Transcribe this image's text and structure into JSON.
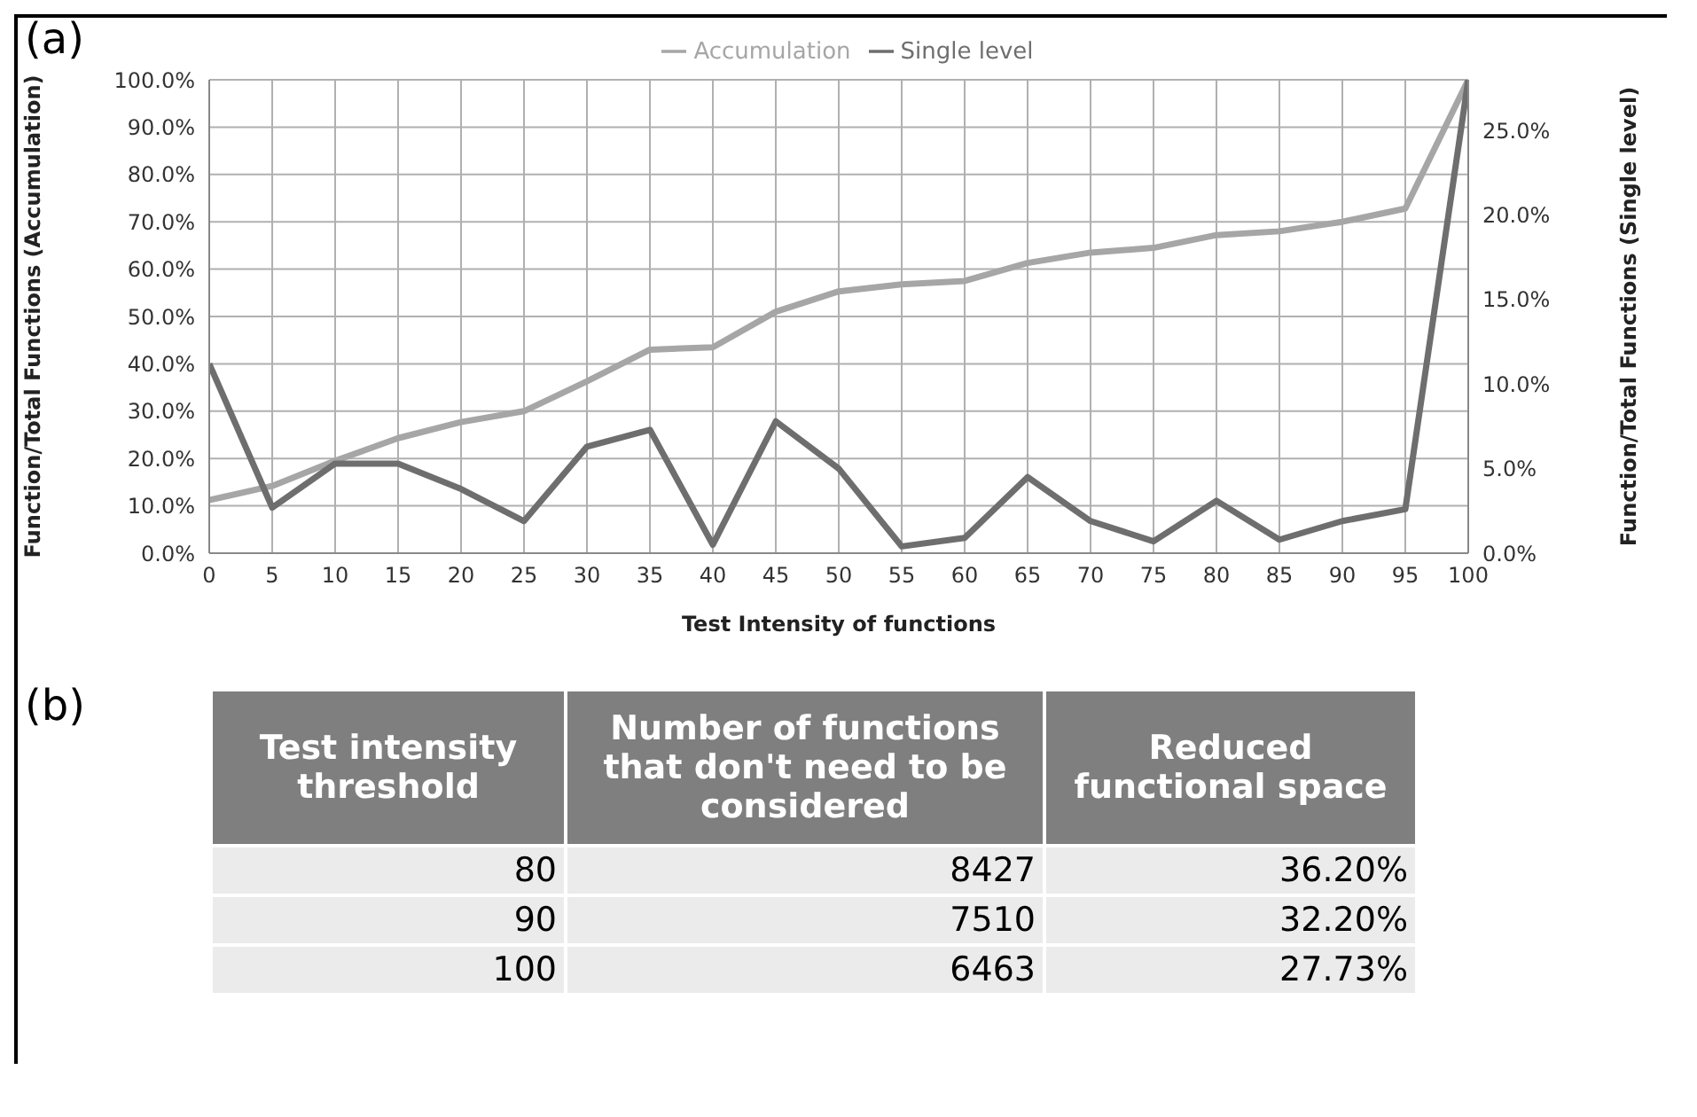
{
  "chart_data": [
    {
      "type": "line",
      "title": "(a)",
      "xlabel": "Test Intensity of functions",
      "ylabel": "Function/Total Functions (Accumulation)",
      "y2label": "Function/Total Functions (Single level)",
      "x": [
        0,
        5,
        10,
        15,
        20,
        25,
        30,
        35,
        40,
        45,
        50,
        55,
        60,
        65,
        70,
        75,
        80,
        85,
        90,
        95,
        100
      ],
      "series": [
        {
          "name": "Accumulation",
          "color": "#a6a6a6",
          "values": [
            11.2,
            14.2,
            19.5,
            24.3,
            27.7,
            30,
            36.3,
            43,
            43.5,
            51,
            55.3,
            56.8,
            57.5,
            61.3,
            63.5,
            64.5,
            67.2,
            68,
            70,
            72.8,
            100
          ]
        },
        {
          "name": "Single level",
          "color": "#6e6e6e",
          "axis": "y2",
          "values": [
            11.2,
            2.7,
            5.3,
            5.3,
            3.8,
            1.9,
            6.3,
            7.3,
            0.5,
            7.8,
            5.0,
            0.4,
            0.9,
            4.5,
            1.9,
            0.7,
            3.1,
            0.8,
            1.9,
            2.6,
            28
          ]
        }
      ],
      "xlim": [
        0,
        100
      ],
      "xticks": [
        0,
        5,
        10,
        15,
        20,
        25,
        30,
        35,
        40,
        45,
        50,
        55,
        60,
        65,
        70,
        75,
        80,
        85,
        90,
        95,
        100
      ],
      "ylim": [
        0,
        100
      ],
      "yticks": [
        {
          "value": 0,
          "label": "0.0%"
        },
        {
          "value": 10,
          "label": "10.0%"
        },
        {
          "value": 20,
          "label": "20.0%"
        },
        {
          "value": 30,
          "label": "30.0%"
        },
        {
          "value": 40,
          "label": "40.0%"
        },
        {
          "value": 50,
          "label": "50.0%"
        },
        {
          "value": 60,
          "label": "60.0%"
        },
        {
          "value": 70,
          "label": "70.0%"
        },
        {
          "value": 80,
          "label": "80.0%"
        },
        {
          "value": 90,
          "label": "90.0%"
        },
        {
          "value": 100,
          "label": "100.0%"
        }
      ],
      "y2lim": [
        0,
        28
      ],
      "y2ticks": [
        {
          "value": 0,
          "label": "0.0%"
        },
        {
          "value": 5,
          "label": "5.0%"
        },
        {
          "value": 10,
          "label": "10.0%"
        },
        {
          "value": 15,
          "label": "15.0%"
        },
        {
          "value": 20,
          "label": "20.0%"
        },
        {
          "value": 25,
          "label": "25.0%"
        }
      ],
      "grid": true,
      "legend": "top",
      "marker": "none",
      "line_style": "solid"
    },
    {
      "type": "other",
      "title": "(b)",
      "categories": [
        "Test intensity threshold",
        "Number of functions that don't need to be considered",
        "Reduced functional space"
      ],
      "cells": [
        [
          "80",
          "8427",
          "36.20%"
        ],
        [
          "90",
          "7510",
          "32.20%"
        ],
        [
          "100",
          "6463",
          "27.73%"
        ]
      ]
    }
  ]
}
